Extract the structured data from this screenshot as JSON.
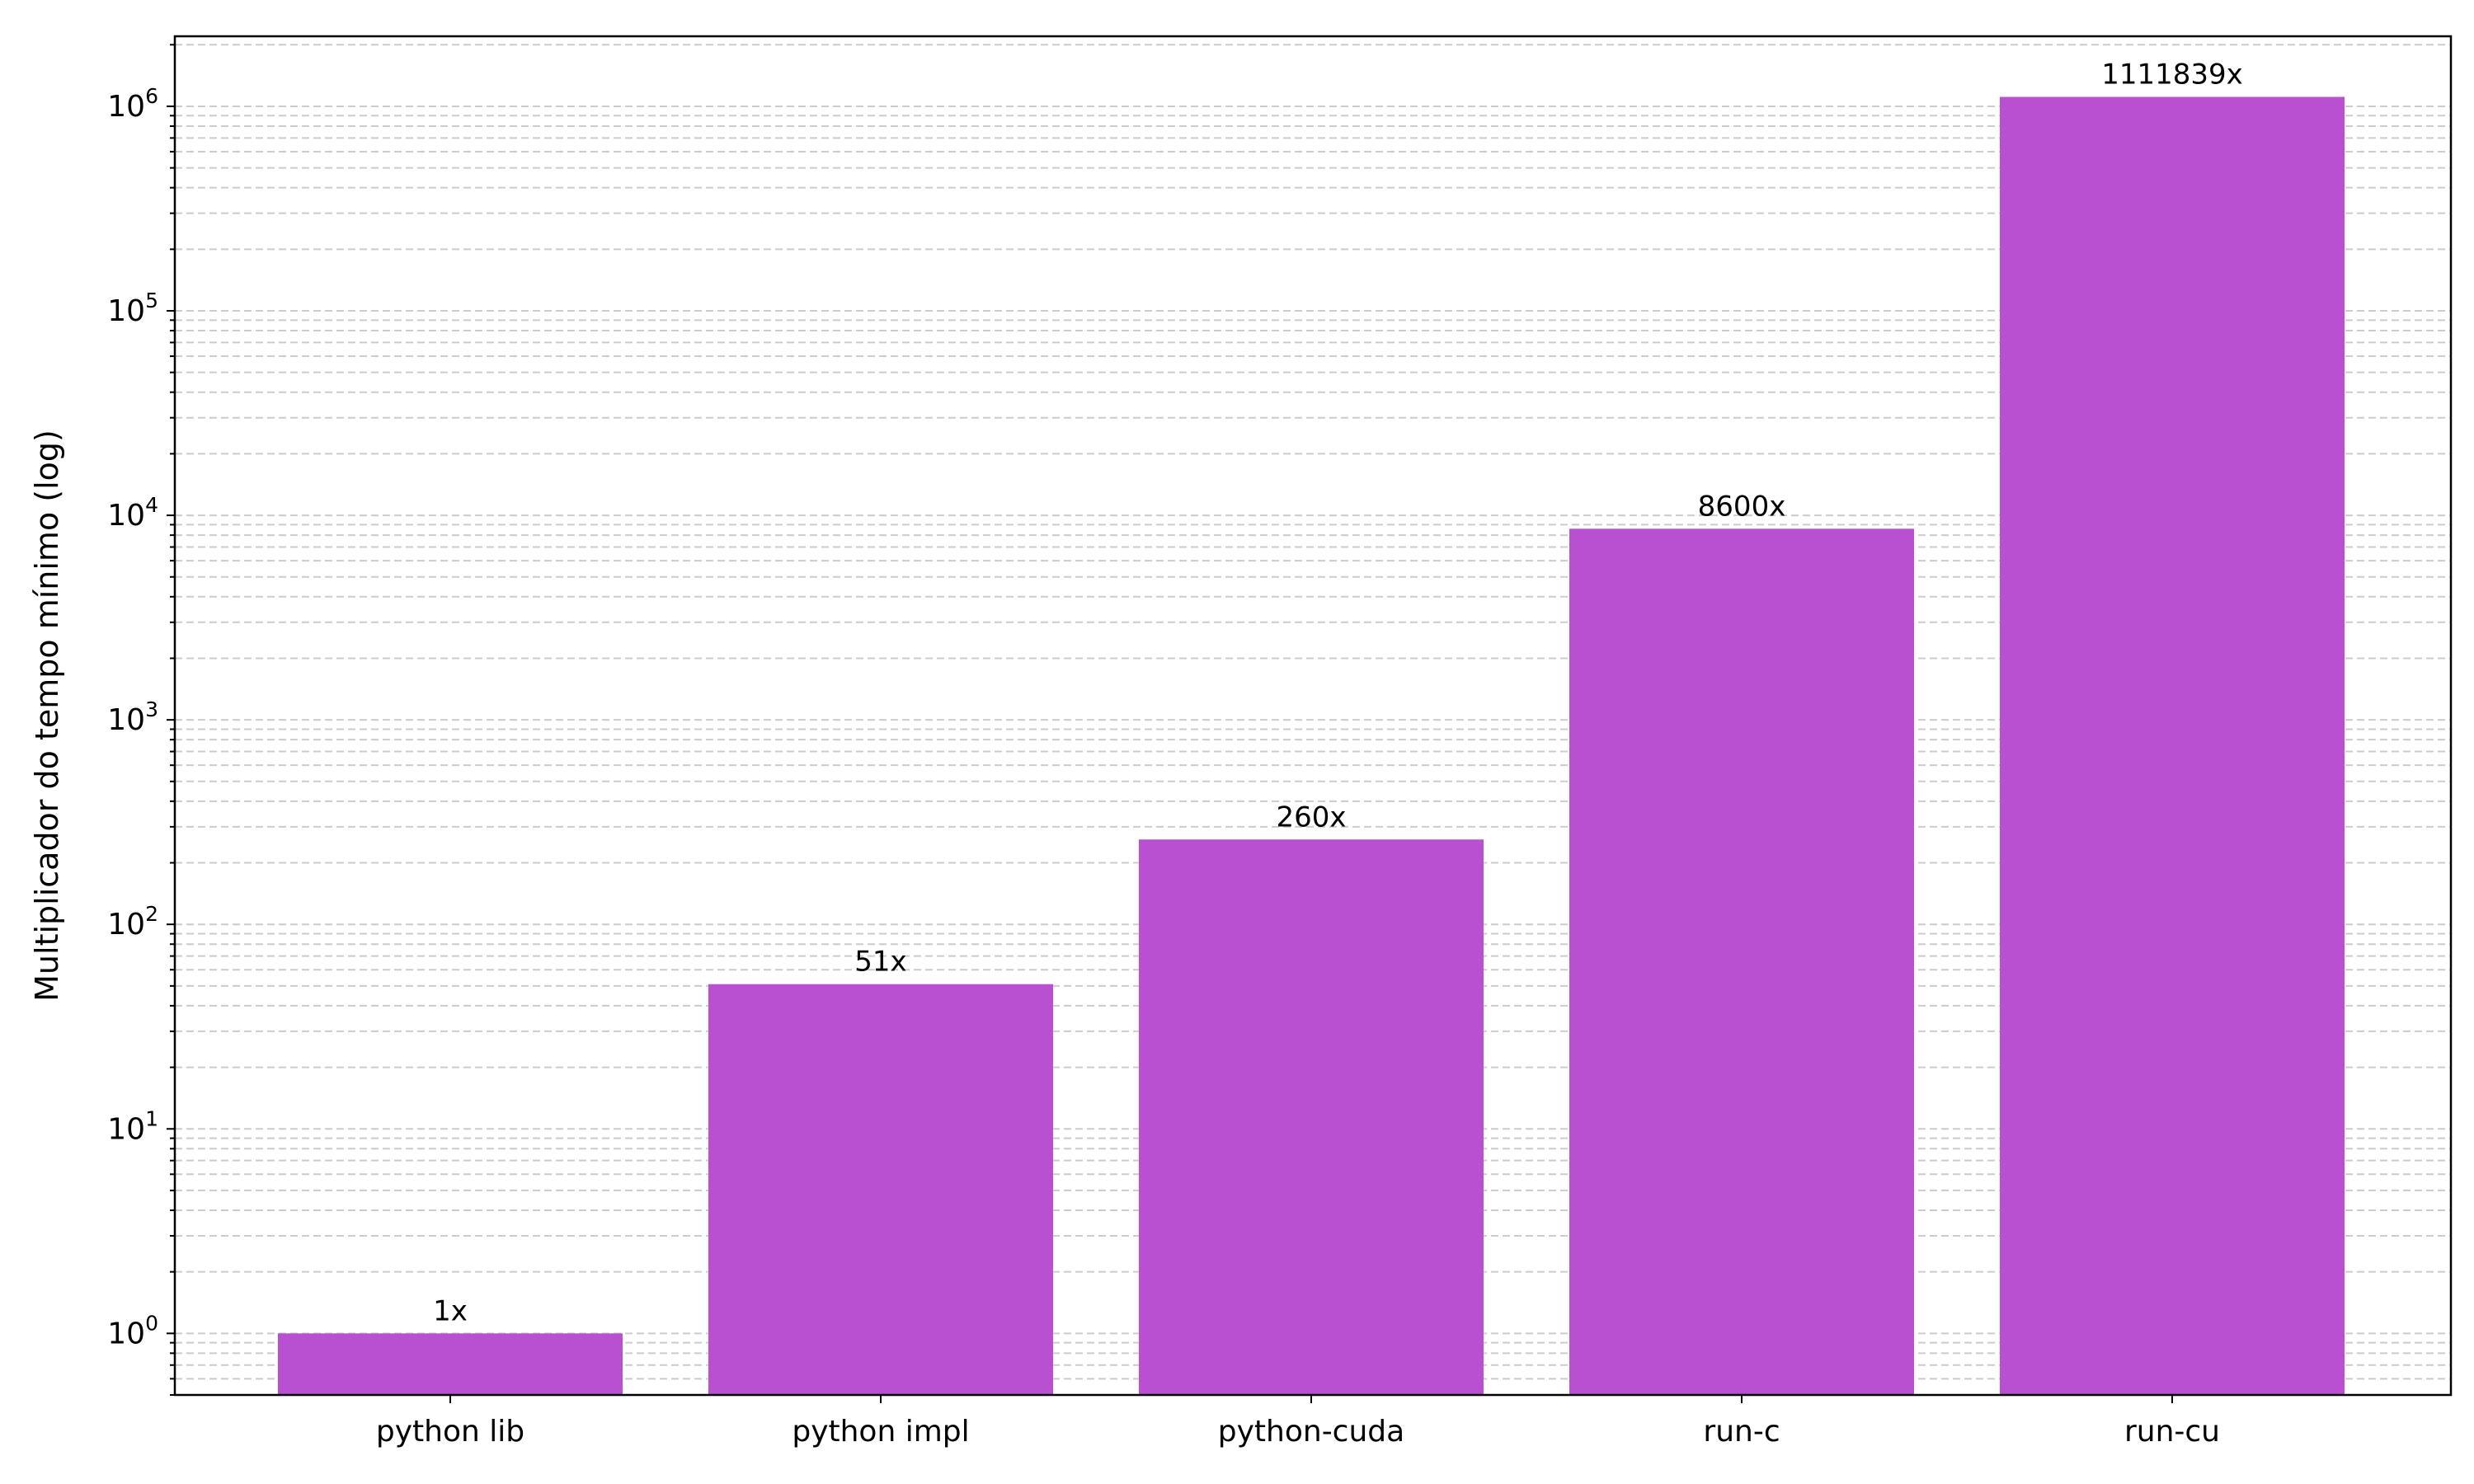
{
  "chart_data": {
    "type": "bar",
    "title": "",
    "xlabel": "",
    "ylabel": "Multiplicador do tempo mínimo (log)",
    "yscale": "log",
    "ylim": [
      0.5,
      2200000
    ],
    "grid": "y, major and minor, dashed",
    "categories": [
      "python lib",
      "python impl",
      "python-cuda",
      "run-c",
      "run-cu"
    ],
    "values": [
      1,
      51,
      260,
      8600,
      1111839
    ],
    "data_labels": [
      "1x",
      "51x",
      "260x",
      "8600x",
      "1111839x"
    ],
    "ytick_labels": [
      {
        "base": "10",
        "exp": "0"
      },
      {
        "base": "10",
        "exp": "1"
      },
      {
        "base": "10",
        "exp": "2"
      },
      {
        "base": "10",
        "exp": "3"
      },
      {
        "base": "10",
        "exp": "4"
      },
      {
        "base": "10",
        "exp": "5"
      },
      {
        "base": "10",
        "exp": "6"
      }
    ],
    "bar_color": "#b94fd1",
    "grid_color": "#cccccc"
  }
}
